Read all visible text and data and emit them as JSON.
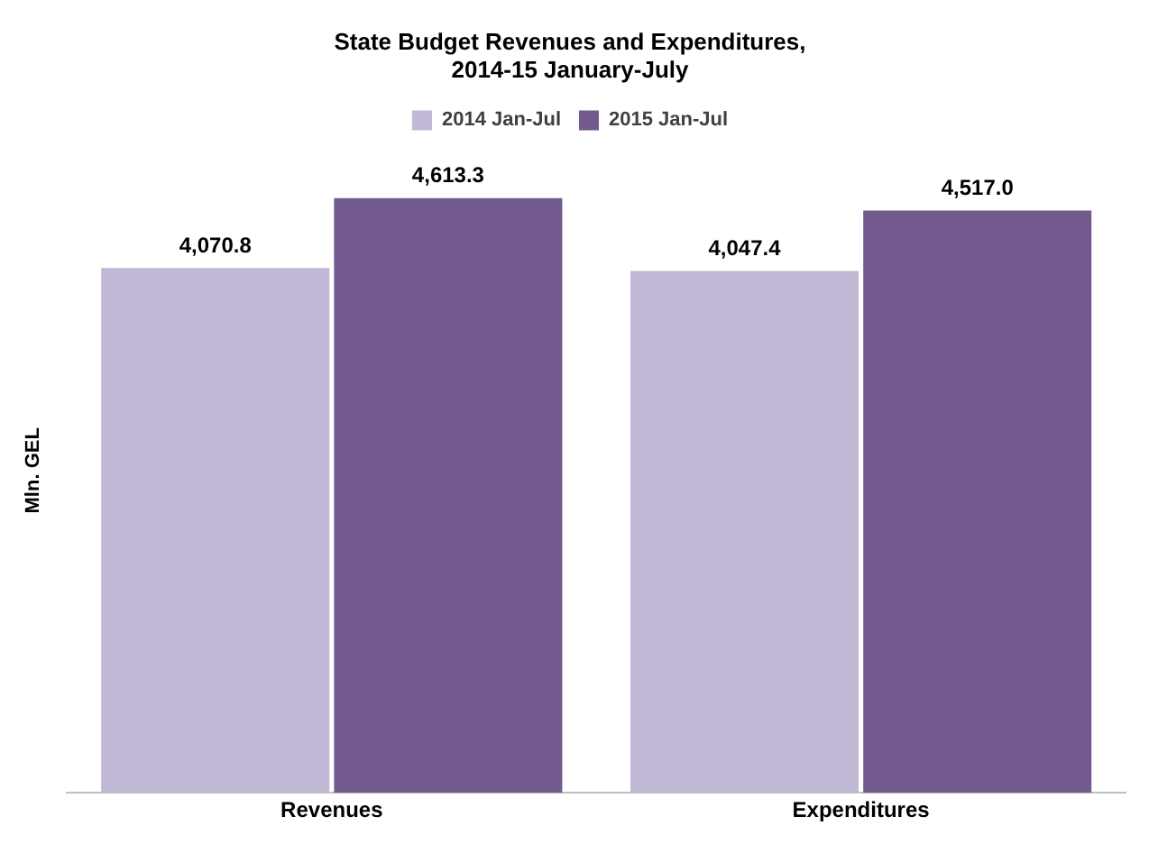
{
  "chart_data": {
    "type": "bar",
    "title": "State Budget Revenues and Expenditures,\n2014-15 January-July",
    "ylabel": "Mln. GEL",
    "categories": [
      "Revenues",
      "Expenditures"
    ],
    "series": [
      {
        "name": "2014 Jan-Jul",
        "color": "#c0b8d4",
        "values": [
          4070.8,
          4047.4
        ],
        "value_labels": [
          "4,070.8",
          "4,047.4"
        ]
      },
      {
        "name": "2015 Jan-Jul",
        "color": "#725a8e",
        "values": [
          4613.3,
          4517.0
        ],
        "value_labels": [
          "4,613.3",
          "4,517.0"
        ]
      }
    ],
    "legend": "top",
    "grid": false
  }
}
